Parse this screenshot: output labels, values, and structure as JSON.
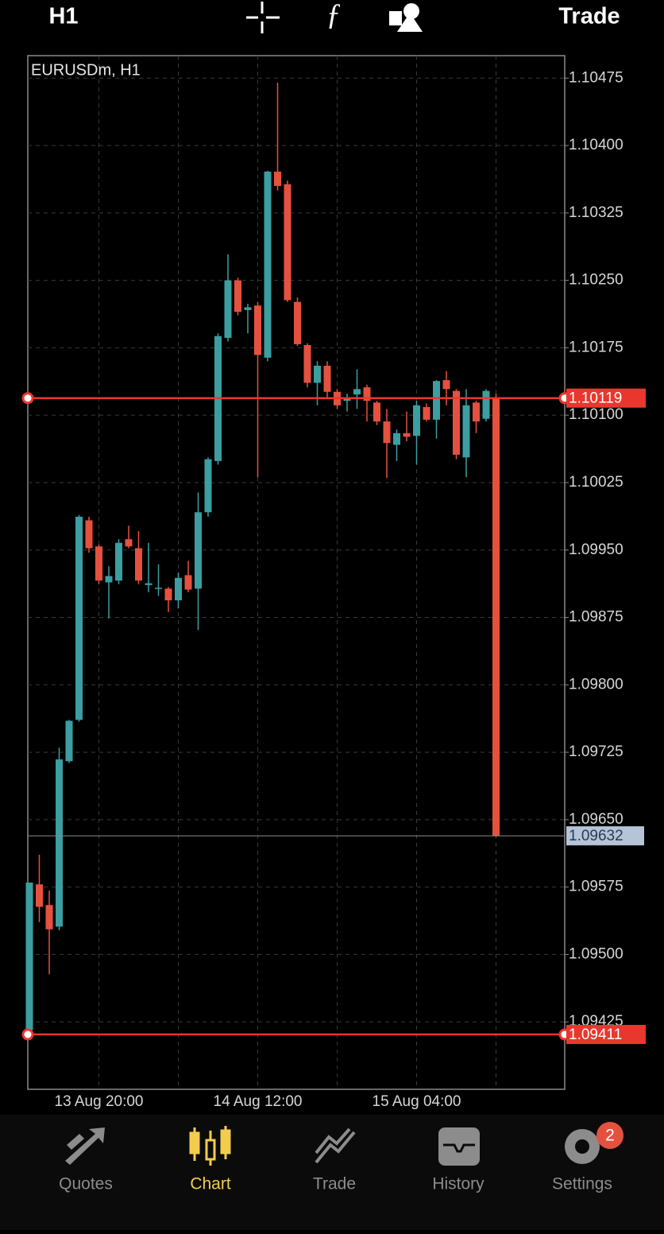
{
  "toolbar": {
    "timeframe": "H1",
    "action": "Trade"
  },
  "chart_data": {
    "type": "candlestick",
    "title": "EURUSDm, H1",
    "categories": [
      null,
      null,
      null,
      null,
      null,
      null,
      null,
      "13 Aug 20:00",
      null,
      null,
      null,
      null,
      null,
      null,
      null,
      null,
      null,
      null,
      null,
      null,
      null,
      null,
      null,
      "14 Aug 12:00",
      null,
      null,
      null,
      null,
      null,
      null,
      null,
      null,
      null,
      null,
      null,
      null,
      null,
      null,
      null,
      "15 Aug 04:00",
      null,
      null,
      null,
      null,
      null,
      null,
      null,
      null
    ],
    "open": [
      1.09416,
      1.09578,
      1.09555,
      1.09531,
      1.09715,
      1.09761,
      1.09983,
      1.09954,
      1.09914,
      1.09916,
      1.09962,
      1.09952,
      1.09911,
      1.09907,
      1.09907,
      1.09894,
      1.09922,
      1.09907,
      1.09992,
      1.10049,
      1.10186,
      1.1025,
      1.10217,
      1.10222,
      1.10164,
      1.10371,
      1.10357,
      1.10226,
      1.10178,
      1.10136,
      1.10155,
      1.10126,
      1.10116,
      1.10123,
      1.10131,
      1.10114,
      1.10093,
      1.10067,
      1.1008,
      1.10077,
      1.10109,
      1.10095,
      1.10139,
      1.10127,
      1.10053,
      1.10114,
      1.10096,
      1.10119
    ],
    "high": [
      1.0958,
      1.09611,
      1.09571,
      1.0973,
      1.09761,
      1.09989,
      1.09987,
      1.09956,
      1.09932,
      1.09962,
      1.09977,
      1.09971,
      1.09958,
      1.09934,
      1.09909,
      1.09925,
      1.09938,
      1.10014,
      1.10053,
      1.10191,
      1.10279,
      1.10253,
      1.10224,
      1.10226,
      1.10372,
      1.1047,
      1.10361,
      1.10231,
      1.1018,
      1.1016,
      1.1016,
      1.10129,
      1.10124,
      1.10151,
      1.10134,
      1.10116,
      1.10107,
      1.10084,
      1.10104,
      1.10116,
      1.10113,
      1.10139,
      1.10149,
      1.10129,
      1.10129,
      1.10116,
      1.10129,
      1.10124
    ],
    "low": [
      1.09412,
      1.09536,
      1.09478,
      1.09527,
      1.09713,
      1.09759,
      1.09947,
      1.09912,
      1.09874,
      1.09912,
      1.09952,
      1.09912,
      1.09903,
      1.09899,
      1.09881,
      1.09885,
      1.09903,
      1.09861,
      1.09987,
      1.10045,
      1.10182,
      1.10211,
      1.10191,
      1.10031,
      1.1016,
      1.1035,
      1.10226,
      1.10177,
      1.10131,
      1.10111,
      1.1012,
      1.10107,
      1.10104,
      1.10107,
      1.10093,
      1.10089,
      1.1003,
      1.10049,
      1.10071,
      1.10045,
      1.10093,
      1.10074,
      1.10111,
      1.10051,
      1.10031,
      1.1008,
      1.10093,
      1.09631
    ],
    "close": [
      1.0958,
      1.09553,
      1.09528,
      1.09717,
      1.0976,
      1.09987,
      1.09952,
      1.09916,
      1.09921,
      1.09958,
      1.09954,
      1.09916,
      1.09913,
      1.09908,
      1.09894,
      1.09919,
      1.09906,
      1.09992,
      1.10051,
      1.10188,
      1.1025,
      1.10215,
      1.1022,
      1.10167,
      1.10371,
      1.10355,
      1.10228,
      1.10179,
      1.10136,
      1.10155,
      1.10126,
      1.10111,
      1.1012,
      1.10129,
      1.10116,
      1.10093,
      1.10069,
      1.1008,
      1.10076,
      1.10111,
      1.10095,
      1.10138,
      1.10129,
      1.10056,
      1.10111,
      1.10093,
      1.10127,
      1.09632
    ],
    "up_color": "#3c9ea0",
    "down_color": "#e5513f",
    "ylim": [
      1.0935,
      1.105
    ],
    "yticks": [
      1.10475,
      {
        "value": 1.104,
        "label": "1.10400"
      },
      1.10325,
      {
        "value": 1.1025,
        "label": "1.10250"
      },
      1.10175,
      {
        "value": 1.101,
        "label": "1.10100"
      },
      1.10025,
      {
        "value": 1.0995,
        "label": "1.09950"
      },
      1.09875,
      {
        "value": 1.098,
        "label": "1.09800"
      },
      1.09725,
      {
        "value": 1.0965,
        "label": "1.09650"
      },
      1.09575,
      {
        "value": 1.095,
        "label": "1.09500"
      },
      1.09425
    ],
    "grid": true,
    "levels": [
      1.10119,
      1.09411
    ],
    "level_color": "#e8382e",
    "bid": 1.09632
  },
  "nav": {
    "items": [
      "Quotes",
      "Chart",
      "Trade",
      "History",
      "Settings"
    ],
    "badge": 2
  }
}
